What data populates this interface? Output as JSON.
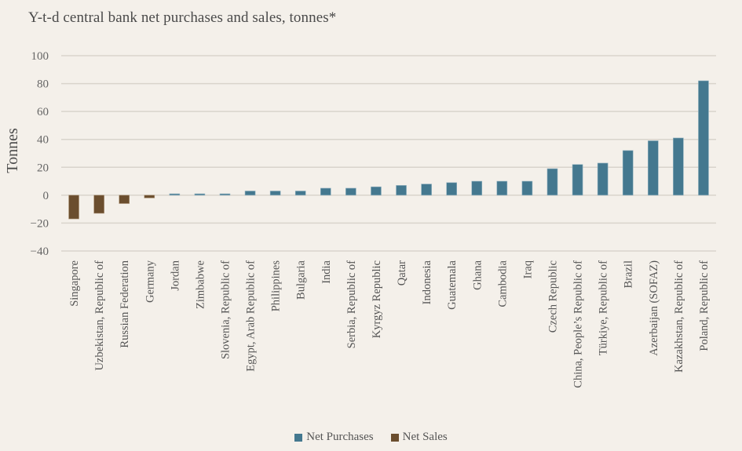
{
  "chart_data": {
    "type": "bar",
    "title": "Y-t-d central bank net purchases and sales, tonnes*",
    "xlabel": "",
    "ylabel": "Tonnes",
    "ylim": [
      -40,
      100
    ],
    "yticks": [
      100,
      80,
      60,
      40,
      20,
      0,
      -20,
      -40
    ],
    "ytick_labels": [
      "100",
      "80",
      "60",
      "40",
      "20",
      "0",
      "−20",
      "−40"
    ],
    "grid": true,
    "legend_position": "bottom",
    "categories": [
      "Singapore",
      "Uzbekistan, Republic of",
      "Russian Federation",
      "Germany",
      "Jordan",
      "Zimbabwe",
      "Slovenia, Republic of",
      "Egypt, Arab Republic of",
      "Philippines",
      "Bulgaria",
      "India",
      "Serbia, Republic of",
      "Kyrgyz Republic",
      "Qatar",
      "Indonesia",
      "Guatemala",
      "Ghana",
      "Cambodia",
      "Iraq",
      "Czech Republic",
      "China, People’s Republic of",
      "Türkiye, Republic of",
      "Brazil",
      "Azerbaijan (SOFAZ)",
      "Kazakhstan, Republic of",
      "Poland, Republic of"
    ],
    "values": [
      -17,
      -13,
      -6,
      -2,
      1,
      1,
      1,
      3,
      3,
      3,
      5,
      5,
      6,
      7,
      8,
      9,
      10,
      10,
      10,
      19,
      22,
      23,
      32,
      39,
      41,
      82
    ],
    "series": [
      {
        "name": "Net Purchases",
        "color": "#44788f",
        "rule": "value >= 0"
      },
      {
        "name": "Net Sales",
        "color": "#6b4e2e",
        "rule": "value < 0"
      }
    ]
  },
  "legend": {
    "items": [
      {
        "label": "Net Purchases",
        "color": "#44788f"
      },
      {
        "label": "Net Sales",
        "color": "#6b4e2e"
      }
    ]
  }
}
